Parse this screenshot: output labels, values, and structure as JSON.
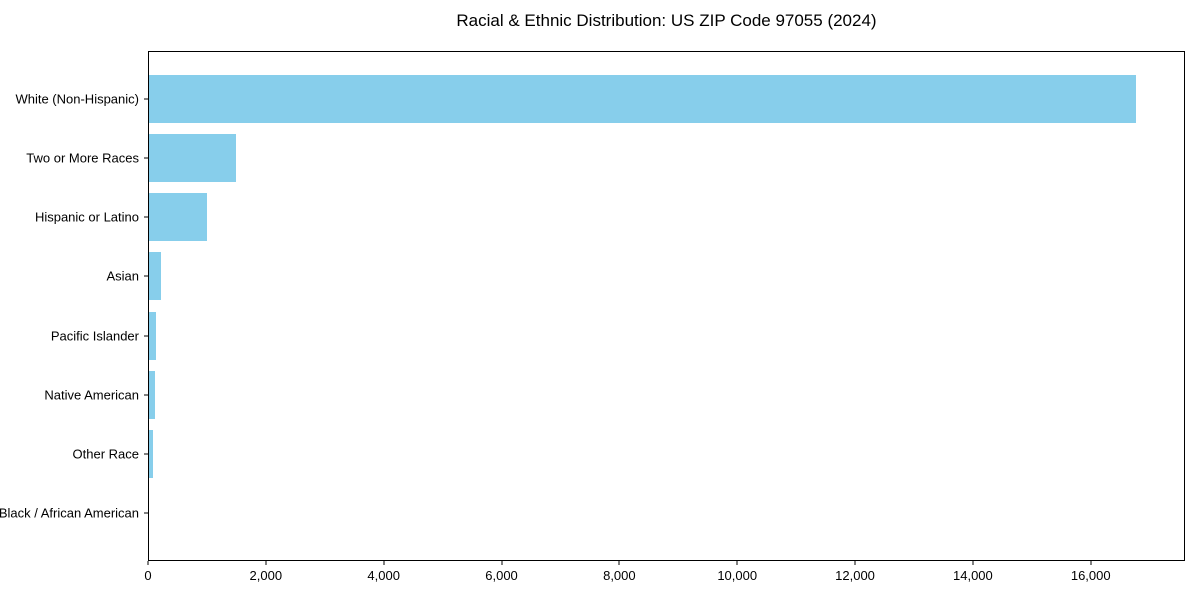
{
  "title": "Racial & Ethnic Distribution: US ZIP Code 97055 (2024)",
  "chart_data": {
    "type": "bar",
    "orientation": "horizontal",
    "title": "Racial & Ethnic Distribution: US ZIP Code 97055 (2024)",
    "categories": [
      "White (Non-Hispanic)",
      "Two or More Races",
      "Hispanic or Latino",
      "Asian",
      "Pacific Islander",
      "Native American",
      "Other Race",
      "Black / African American"
    ],
    "values": [
      16790,
      1480,
      990,
      205,
      125,
      105,
      70,
      0
    ],
    "xlabel": "",
    "ylabel": "",
    "xlim": [
      0,
      17600
    ],
    "x_ticks": [
      0,
      2000,
      4000,
      6000,
      8000,
      10000,
      12000,
      14000,
      16000
    ],
    "x_tick_labels": [
      "0",
      "2,000",
      "4,000",
      "6,000",
      "8,000",
      "10,000",
      "12,000",
      "14,000",
      "16,000"
    ],
    "bar_color": "#87CEEB",
    "axis_color": "#000000",
    "grid": false,
    "legend": null
  }
}
